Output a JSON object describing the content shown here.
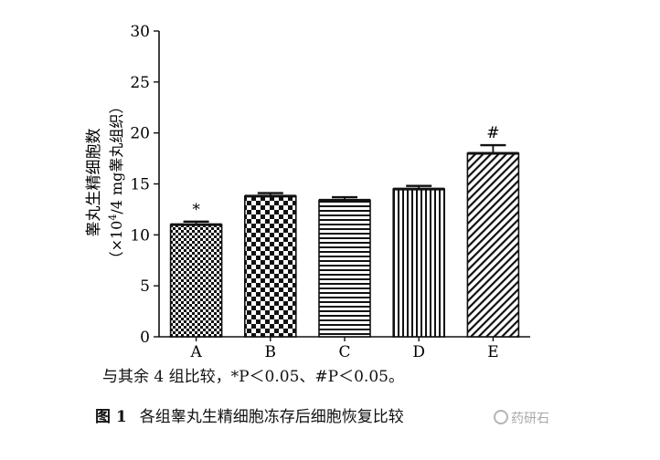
{
  "chart_data": {
    "type": "bar",
    "categories": [
      "A",
      "B",
      "C",
      "D",
      "E"
    ],
    "values": [
      11.0,
      13.8,
      13.4,
      14.5,
      18.0
    ],
    "errors": [
      0.3,
      0.3,
      0.3,
      0.3,
      0.8
    ],
    "annotations": [
      "*",
      "",
      "",
      "",
      "#"
    ],
    "patterns": [
      "small-check",
      "large-check",
      "horizontal-lines",
      "vertical-lines",
      "diagonal-hatch"
    ],
    "ylabel_line1": "睾丸生精细胞数",
    "ylabel_line2": "（×10",
    "ylabel_sup": "4",
    "ylabel_line2_tail": "/4 mg睾丸组织）",
    "ylim": [
      0,
      30
    ],
    "yticks": [
      "0",
      "5",
      "10",
      "15",
      "20",
      "25",
      "30"
    ],
    "xlabel": "",
    "legend": "none",
    "grid": false
  },
  "note": "与其余 4 组比较，*P＜0.05、#P＜0.05。",
  "caption": {
    "figure_label": "图 1",
    "text": "各组睾丸生精细胞冻存后细胞恢复比较"
  },
  "watermark": "药研石"
}
